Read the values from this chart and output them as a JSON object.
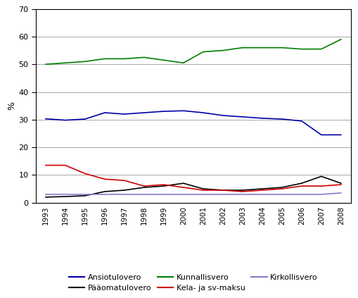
{
  "years": [
    1993,
    1994,
    1995,
    1996,
    1997,
    1998,
    1999,
    2000,
    2001,
    2002,
    2003,
    2004,
    2005,
    2006,
    2007,
    2008
  ],
  "ansiotulovero": [
    30.3,
    29.8,
    30.2,
    32.5,
    32.0,
    32.5,
    33.0,
    33.2,
    32.5,
    31.5,
    31.0,
    30.5,
    30.2,
    29.5,
    24.5,
    24.5
  ],
  "paaomatulovero": [
    2.0,
    2.2,
    2.5,
    4.0,
    4.5,
    5.5,
    6.0,
    7.0,
    5.0,
    4.5,
    4.5,
    5.0,
    5.5,
    7.0,
    9.5,
    7.0
  ],
  "kunnallisvero": [
    50.0,
    50.5,
    51.0,
    52.0,
    52.0,
    52.5,
    51.5,
    50.5,
    54.5,
    55.0,
    56.0,
    56.0,
    56.0,
    55.5,
    55.5,
    59.0
  ],
  "kela_sv_maksu": [
    13.5,
    13.5,
    10.5,
    8.5,
    8.0,
    6.0,
    6.5,
    5.5,
    4.5,
    4.5,
    4.0,
    4.5,
    5.0,
    6.0,
    6.0,
    6.5
  ],
  "kirkollisvero": [
    3.0,
    3.0,
    3.0,
    3.0,
    3.0,
    3.0,
    3.0,
    3.0,
    3.0,
    3.0,
    3.0,
    3.0,
    3.0,
    3.0,
    3.0,
    3.5
  ],
  "colors": {
    "ansiotulovero": "#0000aa",
    "paaomatulovero": "#000000",
    "kunnallisvero": "#008000",
    "kela_sv_maksu": "#cc0000",
    "kirkollisvero": "#8080cc"
  },
  "ylim": [
    0,
    70
  ],
  "yticks": [
    0,
    10,
    20,
    30,
    40,
    50,
    60,
    70
  ],
  "ylabel": "%",
  "legend_labels_row1": [
    "Ansiotulovero",
    "Pääomatulovero",
    "Kunnallisvero"
  ],
  "legend_labels_row2": [
    "Kela- ja sv-maksu",
    "Kirkollisvero"
  ],
  "legend_colors_row1": [
    "ansiotulovero",
    "paaomatulovero",
    "kunnallisvero"
  ],
  "legend_colors_row2": [
    "kela_sv_maksu",
    "kirkollisvero"
  ],
  "bg_color": "#ffffff",
  "grid_color": "#999999"
}
